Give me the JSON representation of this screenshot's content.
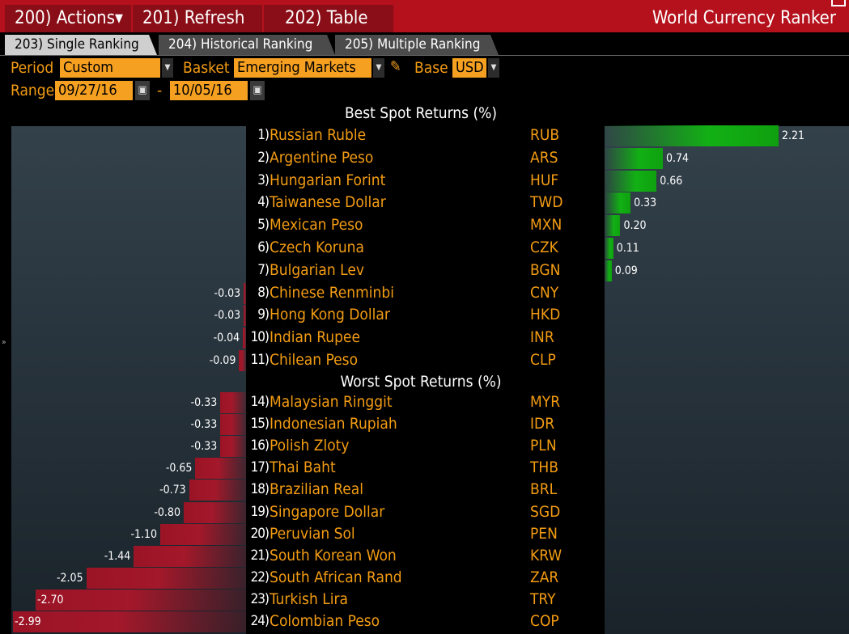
{
  "toolbar": {
    "actions_label": "200) Actions▾",
    "refresh_label": "201) Refresh",
    "table_label": "202) Table",
    "app_title": "World Currency Ranker"
  },
  "tabs": [
    {
      "label": "203) Single Ranking",
      "active": true
    },
    {
      "label": "204) Historical Ranking",
      "active": false
    },
    {
      "label": "205) Multiple Ranking",
      "active": false
    }
  ],
  "filters": {
    "period_label": "Period",
    "period_value": "Custom",
    "basket_label": "Basket",
    "basket_value": "Emerging Markets",
    "base_label": "Base",
    "base_value": "USD",
    "range_label": "Range",
    "range_start": "09/27/16",
    "range_separator": "-",
    "range_end": "10/05/16"
  },
  "best": {
    "title": "Best Spot Returns (%)",
    "rows": [
      {
        "rank": "1)",
        "name": "Russian Ruble",
        "code": "RUB",
        "value": 2.21,
        "label": "2.21"
      },
      {
        "rank": "2)",
        "name": "Argentine Peso",
        "code": "ARS",
        "value": 0.74,
        "label": "0.74"
      },
      {
        "rank": "3)",
        "name": "Hungarian Forint",
        "code": "HUF",
        "value": 0.66,
        "label": "0.66"
      },
      {
        "rank": "4)",
        "name": "Taiwanese Dollar",
        "code": "TWD",
        "value": 0.33,
        "label": "0.33"
      },
      {
        "rank": "5)",
        "name": "Mexican Peso",
        "code": "MXN",
        "value": 0.2,
        "label": "0.20"
      },
      {
        "rank": "6)",
        "name": "Czech Koruna",
        "code": "CZK",
        "value": 0.11,
        "label": "0.11"
      },
      {
        "rank": "7)",
        "name": "Bulgarian Lev",
        "code": "BGN",
        "value": 0.09,
        "label": "0.09"
      },
      {
        "rank": "8)",
        "name": "Chinese Renminbi",
        "code": "CNY",
        "value": -0.03,
        "label": "-0.03"
      },
      {
        "rank": "9)",
        "name": "Hong Kong Dollar",
        "code": "HKD",
        "value": -0.03,
        "label": "-0.03"
      },
      {
        "rank": "10)",
        "name": "Indian Rupee",
        "code": "INR",
        "value": -0.04,
        "label": "-0.04"
      },
      {
        "rank": "11)",
        "name": "Chilean Peso",
        "code": "CLP",
        "value": -0.09,
        "label": "-0.09"
      }
    ]
  },
  "worst": {
    "title": "Worst Spot Returns (%)",
    "rows": [
      {
        "rank": "14)",
        "name": "Malaysian Ringgit",
        "code": "MYR",
        "value": -0.33,
        "label": "-0.33"
      },
      {
        "rank": "15)",
        "name": "Indonesian Rupiah",
        "code": "IDR",
        "value": -0.33,
        "label": "-0.33"
      },
      {
        "rank": "16)",
        "name": "Polish Zloty",
        "code": "PLN",
        "value": -0.33,
        "label": "-0.33"
      },
      {
        "rank": "17)",
        "name": "Thai Baht",
        "code": "THB",
        "value": -0.65,
        "label": "-0.65"
      },
      {
        "rank": "18)",
        "name": "Brazilian Real",
        "code": "BRL",
        "value": -0.73,
        "label": "-0.73"
      },
      {
        "rank": "19)",
        "name": "Singapore Dollar",
        "code": "SGD",
        "value": -0.8,
        "label": "-0.80"
      },
      {
        "rank": "20)",
        "name": "Peruvian Sol",
        "code": "PEN",
        "value": -1.1,
        "label": "-1.10"
      },
      {
        "rank": "21)",
        "name": "South Korean Won",
        "code": "KRW",
        "value": -1.44,
        "label": "-1.44"
      },
      {
        "rank": "22)",
        "name": "South African Rand",
        "code": "ZAR",
        "value": -2.05,
        "label": "-2.05"
      },
      {
        "rank": "23)",
        "name": "Turkish Lira",
        "code": "TRY",
        "value": -2.7,
        "label": "-2.70"
      },
      {
        "rank": "24)",
        "name": "Colombian Peso",
        "code": "COP",
        "value": -2.99,
        "label": "-2.99"
      }
    ]
  },
  "colors": {
    "positive": "#12b014",
    "negative": "#a3182a",
    "accent": "#f39c12",
    "header": "#b4111d"
  },
  "icons": {
    "dropdown": "chevron-down-icon",
    "calendar": "calendar-icon",
    "edit": "pencil-icon",
    "expand": "expand-arrow-icon"
  }
}
